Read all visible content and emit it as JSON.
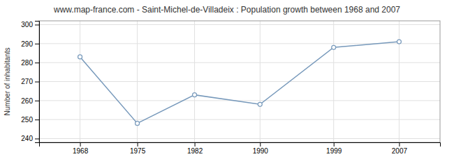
{
  "chart_data": {
    "type": "line",
    "title": "www.map-france.com - Saint-Michel-de-Villadeix : Population growth between 1968 and 2007",
    "x": [
      1968,
      1975,
      1982,
      1990,
      1999,
      2007
    ],
    "values": [
      283,
      248,
      263,
      258,
      288,
      291
    ],
    "color": "#7799bb",
    "marker": "circle",
    "ylabel": "Number of inhabitants",
    "xlim": [
      1963,
      2012
    ],
    "xticks": [
      1968,
      1975,
      1982,
      1990,
      1999,
      2007
    ],
    "ylim": [
      238,
      302
    ],
    "yticks": [
      240,
      250,
      260,
      270,
      280,
      290,
      300
    ],
    "grid": true
  }
}
